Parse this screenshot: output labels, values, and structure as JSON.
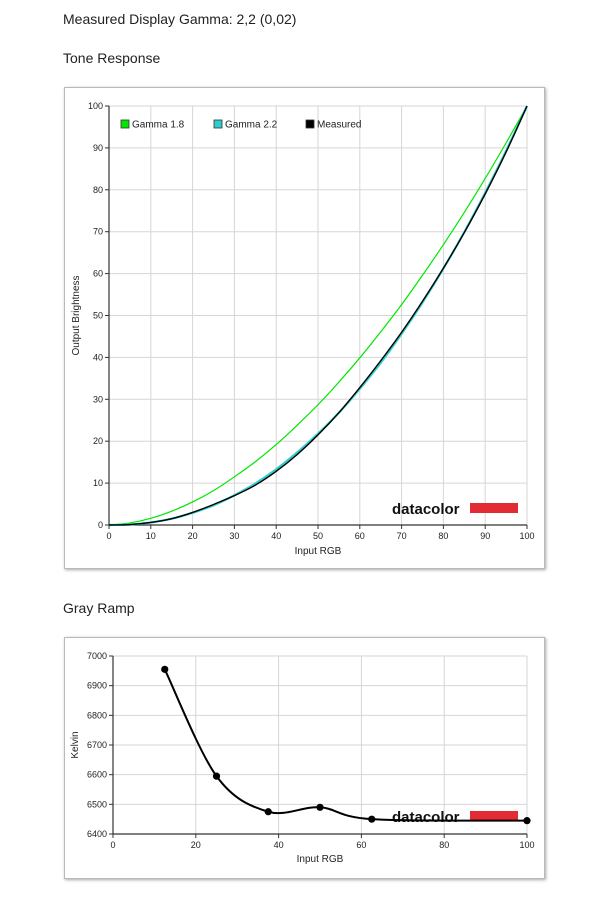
{
  "page": {
    "measured_gamma": "Measured Display Gamma: 2,2 (0,02)"
  },
  "tone_response": {
    "heading": "Tone Response",
    "brand": "datacolor",
    "brand_color": "#e22b33",
    "chart_data": {
      "type": "line",
      "title": "",
      "xlabel": "Input RGB",
      "ylabel": "Output Brightness",
      "xlim": [
        0,
        100
      ],
      "ylim": [
        0,
        100
      ],
      "xticks": [
        "0",
        "10",
        "20",
        "30",
        "40",
        "50",
        "60",
        "70",
        "80",
        "90",
        "100"
      ],
      "yticks": [
        "0",
        "10",
        "20",
        "30",
        "40",
        "50",
        "60",
        "70",
        "80",
        "90",
        "100"
      ],
      "grid": true,
      "legend_position": "top-left",
      "x": [
        0,
        5,
        10,
        15,
        20,
        25,
        30,
        35,
        40,
        45,
        50,
        55,
        60,
        65,
        70,
        75,
        80,
        85,
        90,
        95,
        100
      ],
      "series": [
        {
          "name": "Gamma 1.8",
          "color": "#00e600",
          "values": [
            0,
            0.5,
            1.6,
            3.3,
            5.5,
            8.2,
            11.5,
            15.1,
            19.2,
            23.8,
            28.7,
            34.1,
            39.9,
            46.1,
            52.6,
            59.6,
            66.9,
            74.6,
            82.7,
            91.2,
            100
          ]
        },
        {
          "name": "Gamma 2.2",
          "color": "#33cccc",
          "values": [
            0,
            0.1,
            0.6,
            1.5,
            2.9,
            4.7,
            7.1,
            9.9,
            13.3,
            17.3,
            21.8,
            26.8,
            32.5,
            38.7,
            45.6,
            53.1,
            61.2,
            69.9,
            79.3,
            89.3,
            100
          ]
        },
        {
          "name": "Measured",
          "color": "#000000",
          "values": [
            0,
            0.1,
            0.6,
            1.5,
            3.0,
            4.9,
            7.0,
            9.5,
            12.8,
            16.8,
            21.5,
            26.8,
            32.8,
            39.2,
            46.0,
            53.4,
            61.3,
            69.8,
            79.0,
            89.0,
            100
          ]
        }
      ]
    }
  },
  "gray_ramp": {
    "heading": "Gray Ramp",
    "brand": "datacolor",
    "brand_color": "#e22b33",
    "chart_data": {
      "type": "line",
      "title": "",
      "xlabel": "Input RGB",
      "ylabel": "Kelvin",
      "xlim": [
        0,
        100
      ],
      "ylim": [
        6400,
        7000
      ],
      "xticks": [
        "0",
        "20",
        "40",
        "60",
        "80",
        "100"
      ],
      "yticks": [
        "6400",
        "6500",
        "6600",
        "6700",
        "6800",
        "6900",
        "7000"
      ],
      "grid": true,
      "x": [
        12.5,
        25,
        37.5,
        50,
        62.5,
        100
      ],
      "series": [
        {
          "name": "",
          "color": "#000000",
          "values": [
            6955,
            6595,
            6475,
            6490,
            6450,
            6445
          ]
        }
      ]
    }
  }
}
